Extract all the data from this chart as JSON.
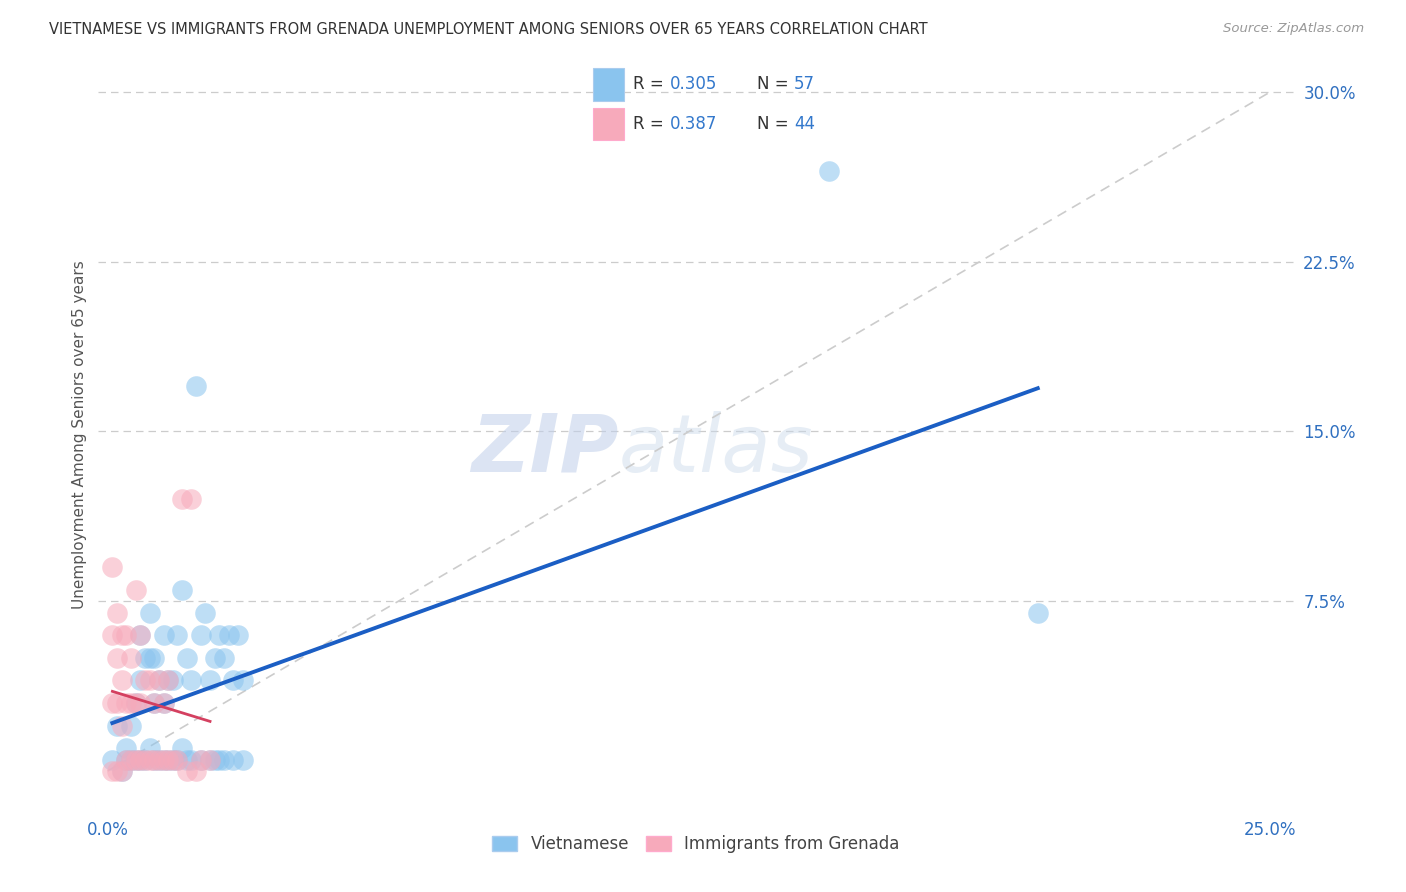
{
  "title": "VIETNAMESE VS IMMIGRANTS FROM GRENADA UNEMPLOYMENT AMONG SENIORS OVER 65 YEARS CORRELATION CHART",
  "source": "Source: ZipAtlas.com",
  "ylabel": "Unemployment Among Seniors over 65 years",
  "x_ticks": [
    0.0,
    0.05,
    0.1,
    0.15,
    0.2,
    0.25
  ],
  "x_tick_labels_show": [
    "0.0%",
    "",
    "",
    "",
    "",
    "25.0%"
  ],
  "y_ticks": [
    0.0,
    0.075,
    0.15,
    0.225,
    0.3
  ],
  "y_tick_labels_show": [
    "",
    "7.5%",
    "15.0%",
    "22.5%",
    "30.0%"
  ],
  "xlim": [
    -0.002,
    0.255
  ],
  "ylim": [
    -0.018,
    0.315
  ],
  "legend1_label": "Vietnamese",
  "legend2_label": "Immigrants from Grenada",
  "blue_color": "#8AC4EE",
  "pink_color": "#F7AABB",
  "blue_line_color": "#1B5EC4",
  "pink_line_color": "#D44060",
  "diagonal_color": "#CCCCCC",
  "R1": "0.305",
  "N1": "57",
  "R2": "0.387",
  "N2": "44",
  "watermark_zip": "ZIP",
  "watermark_atlas": "atlas",
  "blue_points": [
    [
      0.001,
      0.005
    ],
    [
      0.002,
      0.02
    ],
    [
      0.003,
      0.0
    ],
    [
      0.004,
      0.005
    ],
    [
      0.004,
      0.01
    ],
    [
      0.005,
      0.005
    ],
    [
      0.005,
      0.02
    ],
    [
      0.006,
      0.005
    ],
    [
      0.006,
      0.03
    ],
    [
      0.007,
      0.005
    ],
    [
      0.007,
      0.04
    ],
    [
      0.007,
      0.06
    ],
    [
      0.008,
      0.005
    ],
    [
      0.008,
      0.05
    ],
    [
      0.009,
      0.01
    ],
    [
      0.009,
      0.05
    ],
    [
      0.009,
      0.07
    ],
    [
      0.01,
      0.005
    ],
    [
      0.01,
      0.03
    ],
    [
      0.01,
      0.05
    ],
    [
      0.011,
      0.005
    ],
    [
      0.011,
      0.04
    ],
    [
      0.012,
      0.005
    ],
    [
      0.012,
      0.03
    ],
    [
      0.012,
      0.06
    ],
    [
      0.013,
      0.005
    ],
    [
      0.013,
      0.04
    ],
    [
      0.014,
      0.005
    ],
    [
      0.014,
      0.04
    ],
    [
      0.015,
      0.005
    ],
    [
      0.015,
      0.06
    ],
    [
      0.016,
      0.01
    ],
    [
      0.016,
      0.08
    ],
    [
      0.017,
      0.005
    ],
    [
      0.017,
      0.05
    ],
    [
      0.018,
      0.005
    ],
    [
      0.018,
      0.04
    ],
    [
      0.019,
      0.17
    ],
    [
      0.02,
      0.005
    ],
    [
      0.02,
      0.06
    ],
    [
      0.021,
      0.07
    ],
    [
      0.022,
      0.005
    ],
    [
      0.022,
      0.04
    ],
    [
      0.023,
      0.005
    ],
    [
      0.023,
      0.05
    ],
    [
      0.024,
      0.005
    ],
    [
      0.024,
      0.06
    ],
    [
      0.025,
      0.005
    ],
    [
      0.025,
      0.05
    ],
    [
      0.026,
      0.06
    ],
    [
      0.027,
      0.005
    ],
    [
      0.027,
      0.04
    ],
    [
      0.028,
      0.06
    ],
    [
      0.029,
      0.005
    ],
    [
      0.029,
      0.04
    ],
    [
      0.155,
      0.265
    ],
    [
      0.2,
      0.07
    ]
  ],
  "pink_points": [
    [
      0.001,
      0.0
    ],
    [
      0.001,
      0.03
    ],
    [
      0.001,
      0.06
    ],
    [
      0.001,
      0.09
    ],
    [
      0.002,
      0.0
    ],
    [
      0.002,
      0.03
    ],
    [
      0.002,
      0.05
    ],
    [
      0.002,
      0.07
    ],
    [
      0.003,
      0.0
    ],
    [
      0.003,
      0.02
    ],
    [
      0.003,
      0.04
    ],
    [
      0.003,
      0.06
    ],
    [
      0.004,
      0.005
    ],
    [
      0.004,
      0.03
    ],
    [
      0.004,
      0.06
    ],
    [
      0.005,
      0.005
    ],
    [
      0.005,
      0.03
    ],
    [
      0.005,
      0.05
    ],
    [
      0.006,
      0.005
    ],
    [
      0.006,
      0.03
    ],
    [
      0.006,
      0.08
    ],
    [
      0.007,
      0.005
    ],
    [
      0.007,
      0.03
    ],
    [
      0.007,
      0.06
    ],
    [
      0.008,
      0.005
    ],
    [
      0.008,
      0.04
    ],
    [
      0.009,
      0.005
    ],
    [
      0.009,
      0.04
    ],
    [
      0.01,
      0.005
    ],
    [
      0.01,
      0.03
    ],
    [
      0.011,
      0.005
    ],
    [
      0.011,
      0.04
    ],
    [
      0.012,
      0.005
    ],
    [
      0.012,
      0.03
    ],
    [
      0.013,
      0.005
    ],
    [
      0.013,
      0.04
    ],
    [
      0.014,
      0.005
    ],
    [
      0.015,
      0.005
    ],
    [
      0.016,
      0.12
    ],
    [
      0.017,
      0.0
    ],
    [
      0.018,
      0.12
    ],
    [
      0.019,
      0.0
    ],
    [
      0.02,
      0.005
    ],
    [
      0.022,
      0.005
    ]
  ]
}
